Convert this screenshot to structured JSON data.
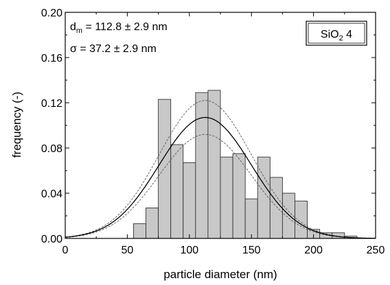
{
  "chart_data": {
    "type": "bar",
    "xlabel": "particle diameter (nm)",
    "ylabel": "frequency (-)",
    "xlim": [
      0,
      250
    ],
    "ylim": [
      0,
      0.2
    ],
    "xticks": [
      "0",
      "50",
      "100",
      "150",
      "200",
      "250"
    ],
    "yticks": [
      "0.00",
      "0.04",
      "0.08",
      "0.12",
      "0.16",
      "0.20"
    ],
    "bin_width": 10,
    "bins": [
      {
        "left": 55,
        "value": 0.013
      },
      {
        "left": 65,
        "value": 0.027
      },
      {
        "left": 75,
        "value": 0.123
      },
      {
        "left": 85,
        "value": 0.083
      },
      {
        "left": 95,
        "value": 0.067
      },
      {
        "left": 105,
        "value": 0.129
      },
      {
        "left": 115,
        "value": 0.131
      },
      {
        "left": 125,
        "value": 0.072
      },
      {
        "left": 135,
        "value": 0.075
      },
      {
        "left": 145,
        "value": 0.035
      },
      {
        "left": 155,
        "value": 0.072
      },
      {
        "left": 165,
        "value": 0.054
      },
      {
        "left": 175,
        "value": 0.04
      },
      {
        "left": 185,
        "value": 0.033
      },
      {
        "left": 195,
        "value": 0.008
      },
      {
        "left": 205,
        "value": 0.005
      },
      {
        "left": 215,
        "value": 0.005
      },
      {
        "left": 225,
        "value": 0.002
      }
    ],
    "fit": {
      "mean": 112.8,
      "sigma": 37.2,
      "peak": 0.107,
      "band_upper_peak": 0.122,
      "band_lower_peak": 0.092
    },
    "annotations": {
      "dm_sym": "d",
      "dm_sub": "m",
      "dm_rest": " = 112.8 ± 2.9 nm",
      "sigma_text": "σ = 37.2 ± 2.9 nm",
      "sample_main": "SiO",
      "sample_sub": "2",
      "sample_rest": " 4"
    }
  }
}
